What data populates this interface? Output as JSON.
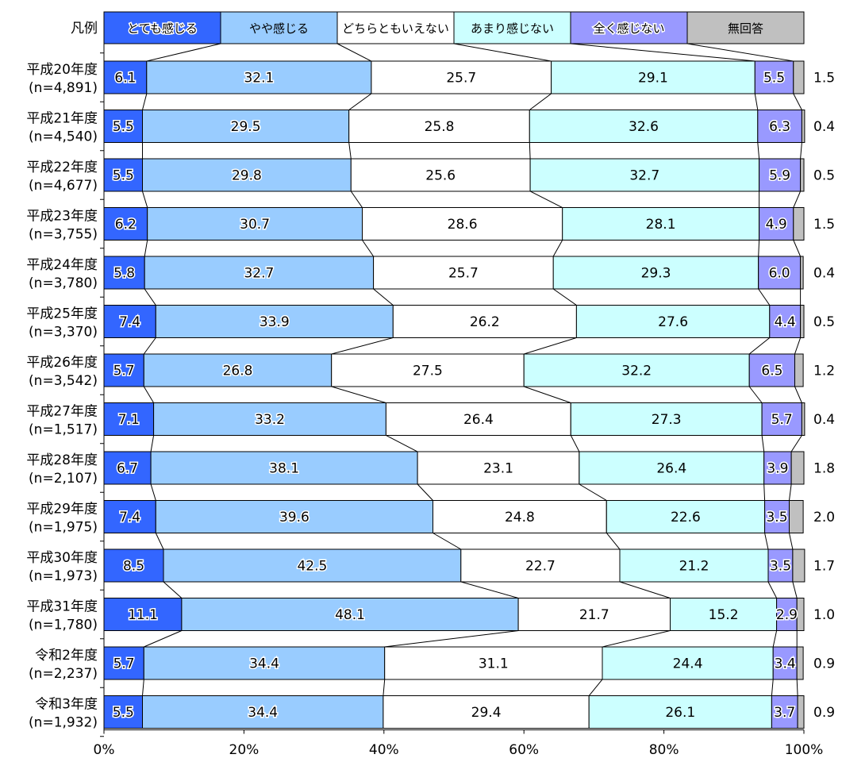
{
  "chart_data": {
    "type": "bar",
    "orientation": "horizontal",
    "stacked": true,
    "normalized_percent": true,
    "legend_title": "凡例",
    "legend_position": "top",
    "series": [
      {
        "name": "とても感じる",
        "color": "#3366ff",
        "values": [
          6.1,
          5.5,
          5.5,
          6.2,
          5.8,
          7.4,
          5.7,
          7.1,
          6.7,
          7.4,
          8.5,
          11.1,
          5.7,
          5.5
        ]
      },
      {
        "name": "やや感じる",
        "color": "#99ccff",
        "values": [
          32.1,
          29.5,
          29.8,
          30.7,
          32.7,
          33.9,
          26.8,
          33.2,
          38.1,
          39.6,
          42.5,
          48.1,
          34.4,
          34.4
        ]
      },
      {
        "name": "どちらともいえない",
        "color": "#ffffff",
        "values": [
          25.7,
          25.8,
          25.6,
          28.6,
          25.7,
          26.2,
          27.5,
          26.4,
          23.1,
          24.8,
          22.7,
          21.7,
          31.1,
          29.4
        ]
      },
      {
        "name": "あまり感じない",
        "color": "#ccffff",
        "values": [
          29.1,
          32.6,
          32.7,
          28.1,
          29.3,
          27.6,
          32.2,
          27.3,
          26.4,
          22.6,
          21.2,
          15.2,
          24.4,
          26.1
        ]
      },
      {
        "name": "全く感じない",
        "color": "#9999ff",
        "values": [
          5.5,
          6.3,
          5.9,
          4.9,
          6.0,
          4.4,
          6.5,
          5.7,
          3.9,
          3.5,
          3.5,
          2.9,
          3.4,
          3.7
        ]
      },
      {
        "name": "無回答",
        "color": "#c0c0c0",
        "values": [
          1.5,
          0.4,
          0.5,
          1.5,
          0.4,
          0.5,
          1.2,
          0.4,
          1.8,
          2.0,
          1.7,
          1.0,
          0.9,
          0.9
        ]
      }
    ],
    "categories": [
      {
        "year": "平成20年度",
        "n": "(n=4,891)"
      },
      {
        "year": "平成21年度",
        "n": "(n=4,540)"
      },
      {
        "year": "平成22年度",
        "n": "(n=4,677)"
      },
      {
        "year": "平成23年度",
        "n": "(n=3,755)"
      },
      {
        "year": "平成24年度",
        "n": "(n=3,780)"
      },
      {
        "year": "平成25年度",
        "n": "(n=3,370)"
      },
      {
        "year": "平成26年度",
        "n": "(n=3,542)"
      },
      {
        "year": "平成27年度",
        "n": "(n=1,517)"
      },
      {
        "year": "平成28年度",
        "n": "(n=2,107)"
      },
      {
        "year": "平成29年度",
        "n": "(n=1,975)"
      },
      {
        "year": "平成30年度",
        "n": "(n=1,973)"
      },
      {
        "year": "平成31年度",
        "n": "(n=1,780)"
      },
      {
        "year": "令和2年度",
        "n": "(n=2,237)"
      },
      {
        "year": "令和3年度",
        "n": "(n=1,932)"
      }
    ],
    "x_ticks": [
      "0%",
      "20%",
      "40%",
      "60%",
      "80%",
      "100%"
    ],
    "xlim": [
      0,
      100
    ],
    "grid": false,
    "connector_lines": true
  }
}
